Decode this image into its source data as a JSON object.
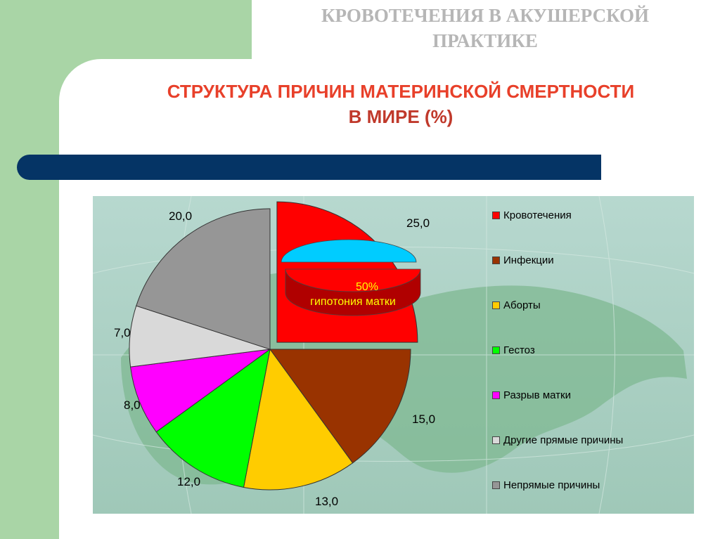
{
  "slide": {
    "title_line1": "КРОВОТЕЧЕНИЯ В АКУШЕРСКОЙ",
    "title_line2": "ПРАКТИКЕ"
  },
  "chart_data": {
    "type": "pie",
    "title_line1": "СТРУКТУРА ПРИЧИН МАТЕРИНСКОЙ СМЕРТНОСТИ",
    "title_line2": "В МИРЕ (%)",
    "categories": [
      "Кровотечения",
      "Инфекции",
      "Аборты",
      "Гестоз",
      "Разрыв матки",
      "Другие прямые причины",
      "Непрямые причины"
    ],
    "values": [
      25.0,
      15.0,
      13.0,
      12.0,
      8.0,
      7.0,
      20.0
    ],
    "value_labels": [
      "25,0",
      "15,0",
      "13,0",
      "12,0",
      "8,0",
      "7,0",
      "20,0"
    ],
    "colors": [
      "#ff0000",
      "#993300",
      "#ffcc00",
      "#00ff00",
      "#ff00ff",
      "#d9d9d9",
      "#969696"
    ],
    "exploded": "Кровотечения",
    "legend_position": "right",
    "inset": {
      "type": "pie",
      "value_label": "50%",
      "label": "гипотония матки",
      "colors": [
        "#00ccff",
        "#ff0000"
      ]
    }
  }
}
